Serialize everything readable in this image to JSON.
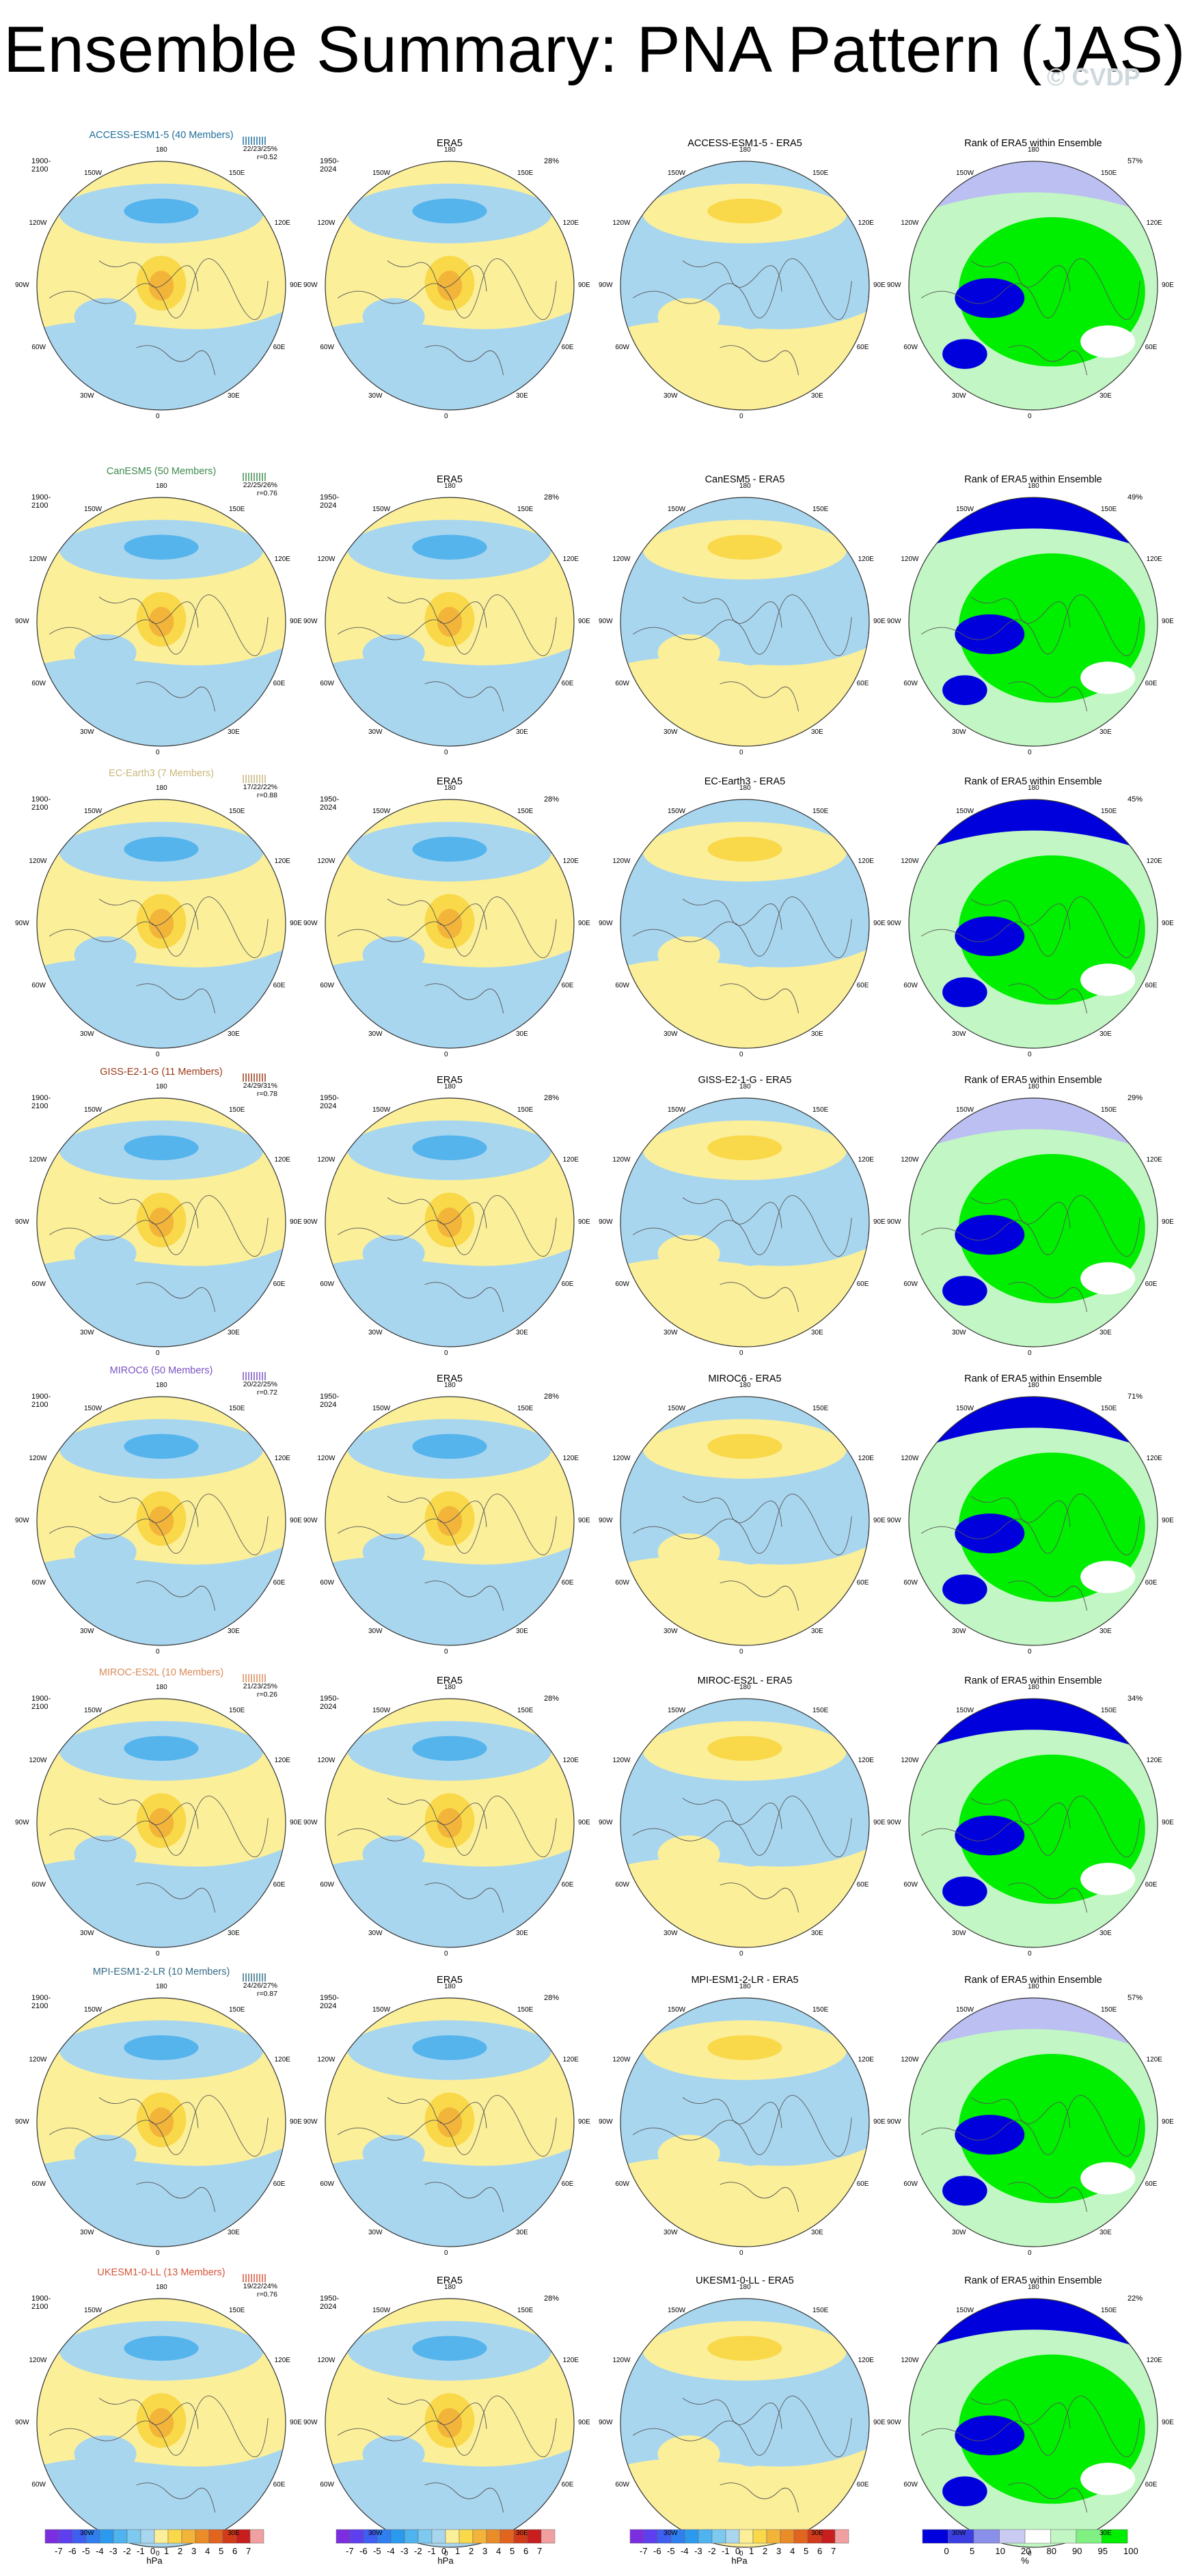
{
  "title": "Ensemble Summary: PNA Pattern (JAS)",
  "watermark": "© CVDP",
  "col_titles": {
    "obs": "ERA5",
    "rank": "Rank of ERA5 within Ensemble"
  },
  "obs_range": "1950-2024",
  "obs_pct": "28%",
  "model_range": "1900-2100",
  "lon_labels": [
    "180",
    "150W",
    "150E",
    "120W",
    "120E",
    "90W",
    "90E",
    "60W",
    "60E",
    "30W",
    "30E",
    "0"
  ],
  "colors": {
    "neg3": "#2a96e6",
    "neg2": "#56b4ec",
    "neg1": "#a9d6ef",
    "pos1": "#fbef9a",
    "pos2": "#f9d84a",
    "pos3": "#f3b43a",
    "pos4": "#ea8c28",
    "pos5": "#e1641f",
    "rank_blue": "#0000dd",
    "rank_lav": "#bcbff1",
    "rank_lgreen": "#c2f6c4",
    "rank_green": "#00ee00"
  },
  "chart_data": {
    "type": "map-panel-grid",
    "rows": [
      {
        "model": "ACCESS-ESM1-5 (40 Members)",
        "model_color": "#1f6e9a",
        "diff_title": "ACCESS-ESM1-5 - ERA5",
        "stats": [
          "22/23/25%",
          "r=0.52"
        ],
        "rank_pct": "57%"
      },
      {
        "model": "CanESM5 (50 Members)",
        "model_color": "#3f8a51",
        "diff_title": "CanESM5 - ERA5",
        "stats": [
          "22/25/26%",
          "r=0.76"
        ],
        "rank_pct": "49%"
      },
      {
        "model": "EC-Earth3 (7 Members)",
        "model_color": "#c9b77c",
        "diff_title": "EC-Earth3 - ERA5",
        "stats": [
          "17/22/22%",
          "r=0.88"
        ],
        "rank_pct": "45%"
      },
      {
        "model": "GISS-E2-1-G (11 Members)",
        "model_color": "#9b3a18",
        "diff_title": "GISS-E2-1-G - ERA5",
        "stats": [
          "24/29/31%",
          "r=0.78"
        ],
        "rank_pct": "29%"
      },
      {
        "model": "MIROC6 (50 Members)",
        "model_color": "#7a52c2",
        "diff_title": "MIROC6 - ERA5",
        "stats": [
          "20/22/25%",
          "r=0.72"
        ],
        "rank_pct": "71%"
      },
      {
        "model": "MIROC-ES2L (10 Members)",
        "model_color": "#d98a58",
        "diff_title": "MIROC-ES2L - ERA5",
        "stats": [
          "21/23/25%",
          "r=0.26"
        ],
        "rank_pct": "34%"
      },
      {
        "model": "MPI-ESM1-2-LR (10 Members)",
        "model_color": "#336c84",
        "diff_title": "MPI-ESM1-2-LR - ERA5",
        "stats": [
          "24/26/27%",
          "r=0.87"
        ],
        "rank_pct": "57%"
      },
      {
        "model": "UKESM1-0-LL (13 Members)",
        "model_color": "#d4553a",
        "diff_title": "UKESM1-0-LL - ERA5",
        "stats": [
          "19/22/24%",
          "r=0.76"
        ],
        "rank_pct": "22%"
      }
    ],
    "colorbar_hpa": {
      "unit": "hPa",
      "tick_labels": [
        "-7",
        "-6",
        "-5",
        "-4",
        "-3",
        "-2",
        "-1",
        "0",
        "1",
        "2",
        "3",
        "4",
        "5",
        "6",
        "7"
      ],
      "colors": [
        "#7b2ee0",
        "#5d3ff0",
        "#3f5ef2",
        "#2f7ff0",
        "#2b9aee",
        "#4fb3ef",
        "#7dc9f0",
        "#a9d6ef",
        "#fbef9a",
        "#f9d84a",
        "#f3b43a",
        "#ea8c28",
        "#e1641f",
        "#d23b1a",
        "#c81e1e",
        "#f0a0a0"
      ]
    },
    "colorbar_rank": {
      "unit": "%",
      "tick_labels": [
        "0",
        "5",
        "10",
        "20",
        "80",
        "90",
        "95",
        "100"
      ],
      "colors": [
        "#0000dd",
        "#3b3fe3",
        "#8a8fe9",
        "#c9cbf2",
        "#ffffff",
        "#c2f6c4",
        "#7ff081",
        "#00ee00"
      ]
    }
  }
}
